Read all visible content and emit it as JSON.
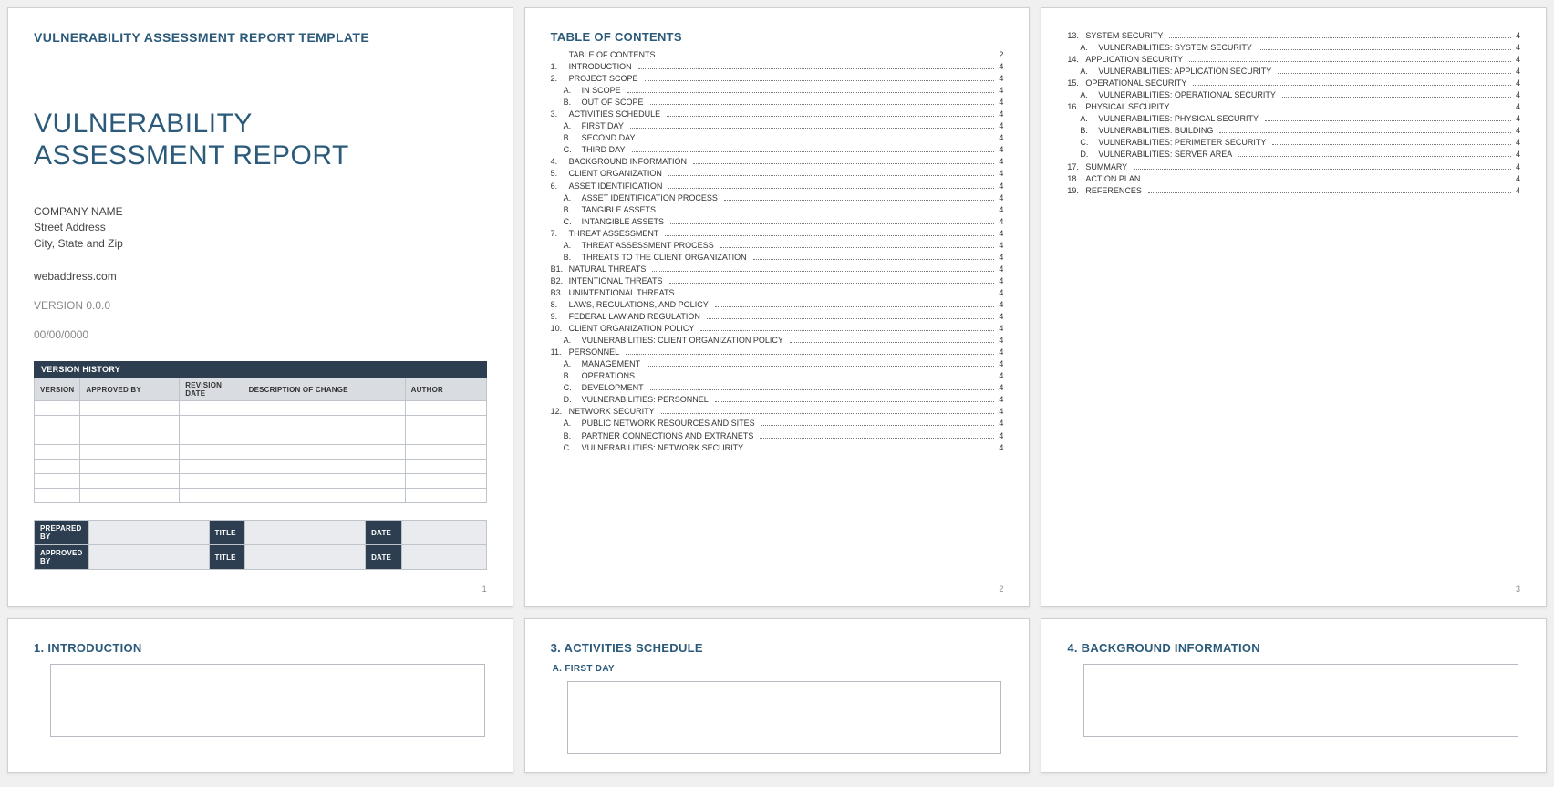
{
  "colors": {
    "accent": "#2b5a7a",
    "dark_header": "#2c3e50",
    "page_bg": "#ffffff",
    "body_bg": "#f0f0f0",
    "border": "#bfc4ca",
    "th_bg": "#d9dde2",
    "fill_bg": "#e9ebee",
    "muted": "#888888"
  },
  "page1": {
    "template_header": "VULNERABILITY ASSESSMENT REPORT TEMPLATE",
    "title_line1": "VULNERABILITY",
    "title_line2": "ASSESSMENT REPORT",
    "company": "COMPANY NAME",
    "street": "Street Address",
    "citystatezip": "City, State and Zip",
    "web": "webaddress.com",
    "version": "VERSION 0.0.0",
    "date": "00/00/0000",
    "vh_title": "VERSION HISTORY",
    "vh_cols": [
      "VERSION",
      "APPROVED BY",
      "REVISION DATE",
      "DESCRIPTION OF CHANGE",
      "AUTHOR"
    ],
    "vh_empty_rows": 7,
    "sign": {
      "prepared": "PREPARED BY",
      "approved": "APPROVED BY",
      "title": "TITLE",
      "date": "DATE"
    },
    "page_num": "1"
  },
  "page2": {
    "title": "TABLE OF CONTENTS",
    "entries": [
      {
        "n": "",
        "label": "TABLE OF CONTENTS",
        "pg": "2",
        "sub": false
      },
      {
        "n": "1.",
        "label": "INTRODUCTION",
        "pg": "4",
        "sub": false
      },
      {
        "n": "2.",
        "label": "PROJECT SCOPE",
        "pg": "4",
        "sub": false
      },
      {
        "n": "A.",
        "label": "IN SCOPE",
        "pg": "4",
        "sub": true
      },
      {
        "n": "B.",
        "label": "OUT OF SCOPE",
        "pg": "4",
        "sub": true
      },
      {
        "n": "3.",
        "label": "ACTIVITIES SCHEDULE",
        "pg": "4",
        "sub": false
      },
      {
        "n": "A.",
        "label": "FIRST DAY",
        "pg": "4",
        "sub": true
      },
      {
        "n": "B.",
        "label": "SECOND DAY",
        "pg": "4",
        "sub": true
      },
      {
        "n": "C.",
        "label": "THIRD DAY",
        "pg": "4",
        "sub": true
      },
      {
        "n": "4.",
        "label": "BACKGROUND INFORMATION",
        "pg": "4",
        "sub": false
      },
      {
        "n": "5.",
        "label": "CLIENT ORGANIZATION",
        "pg": "4",
        "sub": false
      },
      {
        "n": "6.",
        "label": "ASSET IDENTIFICATION",
        "pg": "4",
        "sub": false
      },
      {
        "n": "A.",
        "label": "ASSET IDENTIFICATION PROCESS",
        "pg": "4",
        "sub": true
      },
      {
        "n": "B.",
        "label": "TANGIBLE ASSETS",
        "pg": "4",
        "sub": true
      },
      {
        "n": "C.",
        "label": "INTANGIBLE ASSETS",
        "pg": "4",
        "sub": true
      },
      {
        "n": "7.",
        "label": "THREAT ASSESSMENT",
        "pg": "4",
        "sub": false
      },
      {
        "n": "A.",
        "label": "THREAT ASSESSMENT PROCESS",
        "pg": "4",
        "sub": true
      },
      {
        "n": "B.",
        "label": "THREATS TO THE CLIENT ORGANIZATION",
        "pg": "4",
        "sub": true
      },
      {
        "n": "B1.",
        "label": "NATURAL THREATS",
        "pg": "4",
        "sub": false
      },
      {
        "n": "B2.",
        "label": "INTENTIONAL THREATS",
        "pg": "4",
        "sub": false
      },
      {
        "n": "B3.",
        "label": "UNINTENTIONAL THREATS",
        "pg": "4",
        "sub": false
      },
      {
        "n": "8.",
        "label": "LAWS, REGULATIONS, AND POLICY",
        "pg": "4",
        "sub": false
      },
      {
        "n": "9.",
        "label": "FEDERAL LAW AND REGULATION",
        "pg": "4",
        "sub": false
      },
      {
        "n": "10.",
        "label": "CLIENT ORGANIZATION POLICY",
        "pg": "4",
        "sub": false
      },
      {
        "n": "A.",
        "label": "VULNERABILITIES: CLIENT ORGANIZATION POLICY",
        "pg": "4",
        "sub": true
      },
      {
        "n": "11.",
        "label": "PERSONNEL",
        "pg": "4",
        "sub": false
      },
      {
        "n": "A.",
        "label": "MANAGEMENT",
        "pg": "4",
        "sub": true
      },
      {
        "n": "B.",
        "label": "OPERATIONS",
        "pg": "4",
        "sub": true
      },
      {
        "n": "C.",
        "label": "DEVELOPMENT",
        "pg": "4",
        "sub": true
      },
      {
        "n": "D.",
        "label": "VULNERABILITIES: PERSONNEL",
        "pg": "4",
        "sub": true
      },
      {
        "n": "12.",
        "label": "NETWORK SECURITY",
        "pg": "4",
        "sub": false
      },
      {
        "n": "A.",
        "label": "PUBLIC NETWORK RESOURCES AND SITES",
        "pg": "4",
        "sub": true
      },
      {
        "n": "B.",
        "label": "PARTNER CONNECTIONS AND EXTRANETS",
        "pg": "4",
        "sub": true
      },
      {
        "n": "C.",
        "label": "VULNERABILITIES: NETWORK SECURITY",
        "pg": "4",
        "sub": true
      }
    ],
    "page_num": "2"
  },
  "page3": {
    "entries": [
      {
        "n": "13.",
        "label": "SYSTEM SECURITY",
        "pg": "4",
        "sub": false
      },
      {
        "n": "A.",
        "label": "VULNERABILITIES: SYSTEM SECURITY",
        "pg": "4",
        "sub": true
      },
      {
        "n": "14.",
        "label": "APPLICATION SECURITY",
        "pg": "4",
        "sub": false
      },
      {
        "n": "A.",
        "label": "VULNERABILITIES: APPLICATION SECURITY",
        "pg": "4",
        "sub": true
      },
      {
        "n": "15.",
        "label": "OPERATIONAL SECURITY",
        "pg": "4",
        "sub": false
      },
      {
        "n": "A.",
        "label": "VULNERABILITIES: OPERATIONAL SECURITY",
        "pg": "4",
        "sub": true
      },
      {
        "n": "16.",
        "label": "PHYSICAL SECURITY",
        "pg": "4",
        "sub": false
      },
      {
        "n": "A.",
        "label": "VULNERABILITIES: PHYSICAL SECURITY",
        "pg": "4",
        "sub": true
      },
      {
        "n": "B.",
        "label": "VULNERABILITIES: BUILDING",
        "pg": "4",
        "sub": true
      },
      {
        "n": "C.",
        "label": "VULNERABILITIES: PERIMETER SECURITY",
        "pg": "4",
        "sub": true
      },
      {
        "n": "D.",
        "label": "VULNERABILITIES: SERVER AREA",
        "pg": "4",
        "sub": true
      },
      {
        "n": "17.",
        "label": "SUMMARY",
        "pg": "4",
        "sub": false
      },
      {
        "n": "18.",
        "label": "ACTION PLAN",
        "pg": "4",
        "sub": false
      },
      {
        "n": "19.",
        "label": "REFERENCES",
        "pg": "4",
        "sub": false
      }
    ],
    "page_num": "3"
  },
  "page4": {
    "title": "1. INTRODUCTION"
  },
  "page5": {
    "title": "3. ACTIVITIES SCHEDULE",
    "sub": "A.  FIRST DAY"
  },
  "page6": {
    "title": "4. BACKGROUND INFORMATION"
  }
}
